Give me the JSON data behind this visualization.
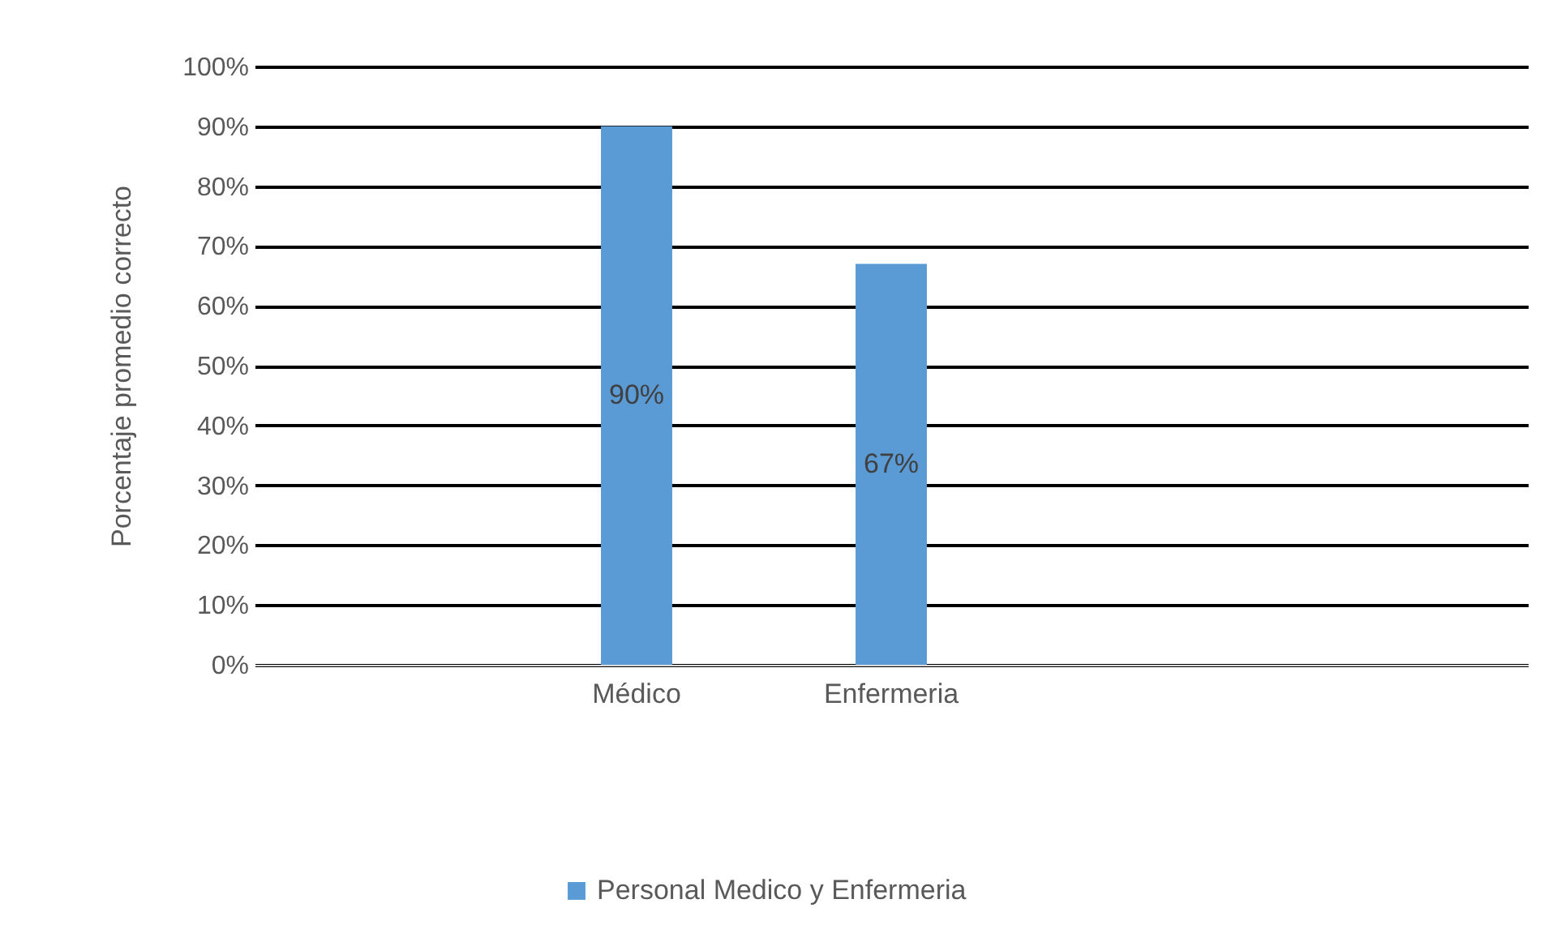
{
  "chart_data": {
    "type": "bar",
    "ylabel": "Porcentaje promedio correcto",
    "categories": [
      null,
      "Médico",
      "Enfermeria",
      null,
      null
    ],
    "series": [
      {
        "name": "Personal Medico y Enfermeria",
        "color": "#5b9bd5",
        "values": [
          null,
          90,
          67,
          null,
          null
        ],
        "value_labels": [
          null,
          "90%",
          "67%",
          null,
          null
        ]
      }
    ],
    "ylim": [
      0,
      100
    ],
    "yticks": [
      {
        "value": 0,
        "label": "0%"
      },
      {
        "value": 10,
        "label": "10%"
      },
      {
        "value": 20,
        "label": "20%"
      },
      {
        "value": 30,
        "label": "30%"
      },
      {
        "value": 40,
        "label": "40%"
      },
      {
        "value": 50,
        "label": "50%"
      },
      {
        "value": 60,
        "label": "60%"
      },
      {
        "value": 70,
        "label": "70%"
      },
      {
        "value": 80,
        "label": "80%"
      },
      {
        "value": 90,
        "label": "90%"
      },
      {
        "value": 100,
        "label": "100%"
      }
    ],
    "grid": true,
    "legend": "bottom"
  }
}
